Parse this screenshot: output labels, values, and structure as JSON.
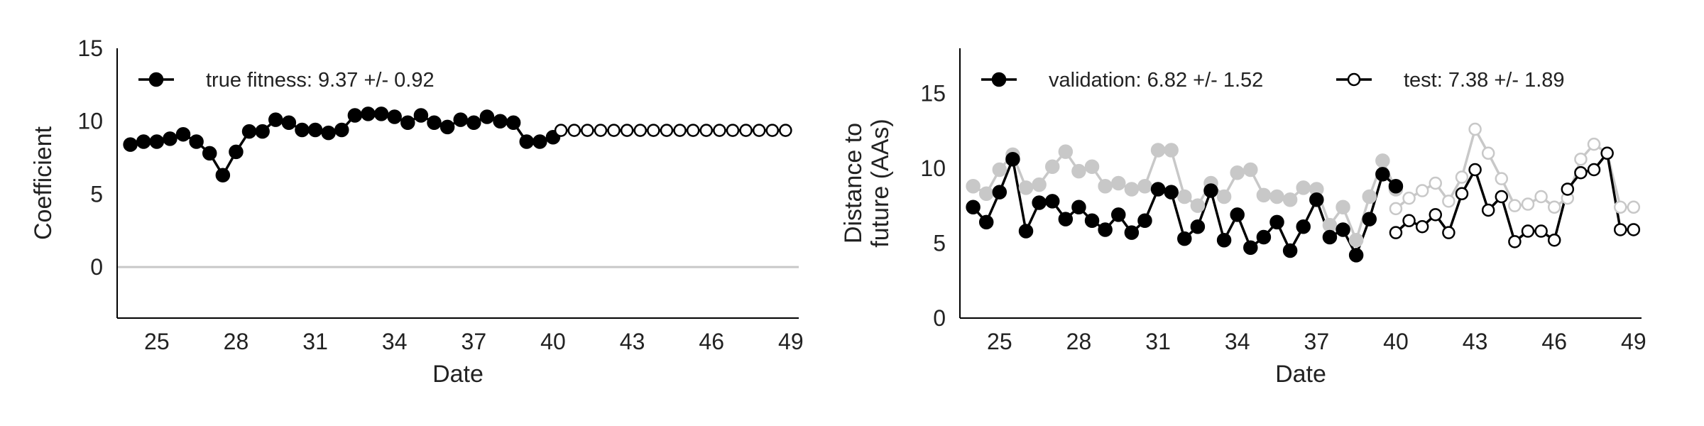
{
  "chart_data": [
    {
      "type": "line",
      "xlabel": "Date",
      "ylabel": "Coefficient",
      "xlim": [
        23.5,
        49.3
      ],
      "ylim": [
        -3.5,
        15
      ],
      "xticks": [
        25,
        28,
        31,
        34,
        37,
        40,
        43,
        46,
        49
      ],
      "xtick_labels": [
        "25",
        "28",
        "31",
        "34",
        "37",
        "40",
        "43",
        "46",
        "49"
      ],
      "yticks": [
        0,
        5,
        10,
        15
      ],
      "ytick_labels": [
        "0",
        "5",
        "10",
        "15"
      ],
      "grid": false,
      "legend_position": "top-left",
      "zero_line": {
        "y": 0,
        "color": "#c8c8c8"
      },
      "legend": [
        {
          "label": "true fitness: 9.37 +/- 0.92",
          "marker": "filled"
        }
      ],
      "series": [
        {
          "name": "true fitness: 9.37 +/- 0.92",
          "marker": "filled",
          "color": "#000000",
          "x": [
            24.0,
            24.5,
            25.0,
            25.5,
            26.0,
            26.5,
            27.0,
            27.5,
            28.0,
            28.5,
            29.0,
            29.5,
            30.0,
            30.5,
            31.0,
            31.5,
            32.0,
            32.5,
            33.0,
            33.5,
            34.0,
            34.5,
            35.0,
            35.5,
            36.0,
            36.5,
            37.0,
            37.5,
            38.0,
            38.5,
            39.0,
            39.5,
            40.0
          ],
          "y": [
            8.4,
            8.6,
            8.6,
            8.8,
            9.1,
            8.6,
            7.8,
            6.3,
            7.9,
            9.3,
            9.3,
            10.1,
            9.9,
            9.4,
            9.4,
            9.2,
            9.4,
            10.4,
            10.5,
            10.5,
            10.3,
            9.9,
            10.4,
            9.9,
            9.6,
            10.1,
            9.9,
            10.3,
            10.0,
            9.9,
            8.6,
            8.6,
            8.9
          ]
        },
        {
          "name": "",
          "marker": "open",
          "color": "#000000",
          "x": [
            40.3,
            40.8,
            41.3,
            41.8,
            42.3,
            42.8,
            43.3,
            43.8,
            44.3,
            44.8,
            45.3,
            45.8,
            46.3,
            46.8,
            47.3,
            47.8,
            48.3,
            48.8
          ],
          "y": [
            9.37,
            9.37,
            9.37,
            9.37,
            9.37,
            9.37,
            9.37,
            9.37,
            9.37,
            9.37,
            9.37,
            9.37,
            9.37,
            9.37,
            9.37,
            9.37,
            9.37,
            9.37
          ]
        }
      ]
    },
    {
      "type": "line",
      "xlabel": "Date",
      "ylabel": "Distance to\nfuture (AAs)",
      "ylabel_lines": [
        "Distance to",
        "future (AAs)"
      ],
      "xlim": [
        23.5,
        49.3
      ],
      "ylim": [
        0,
        18
      ],
      "xticks": [
        25,
        28,
        31,
        34,
        37,
        40,
        43,
        46,
        49
      ],
      "xtick_labels": [
        "25",
        "28",
        "31",
        "34",
        "37",
        "40",
        "43",
        "46",
        "49"
      ],
      "yticks": [
        0,
        5,
        10,
        15
      ],
      "ytick_labels": [
        "0",
        "5",
        "10",
        "15"
      ],
      "grid": false,
      "legend_position": "top-left",
      "legend": [
        {
          "label": "validation: 6.82 +/- 1.52",
          "marker": "filled"
        },
        {
          "label": "test: 7.38 +/- 1.89",
          "marker": "open"
        }
      ],
      "series": [
        {
          "name": "",
          "marker": "filled",
          "color": "#c8c8c8",
          "x": [
            24.0,
            24.5,
            25.0,
            25.5,
            26.0,
            26.5,
            27.0,
            27.5,
            28.0,
            28.5,
            29.0,
            29.5,
            30.0,
            30.5,
            31.0,
            31.5,
            32.0,
            32.5,
            33.0,
            33.5,
            34.0,
            34.5,
            35.0,
            35.5,
            36.0,
            36.5,
            37.0,
            37.5,
            38.0,
            38.5,
            39.0,
            39.5,
            40.0
          ],
          "y": [
            8.8,
            8.3,
            9.9,
            10.9,
            8.7,
            8.9,
            10.1,
            11.1,
            9.8,
            10.1,
            8.8,
            9.0,
            8.6,
            8.8,
            11.2,
            11.2,
            8.1,
            7.5,
            9.0,
            8.1,
            9.7,
            9.9,
            8.2,
            8.1,
            7.9,
            8.7,
            8.6,
            6.2,
            7.4,
            5.2,
            8.1,
            10.5,
            8.6
          ]
        },
        {
          "name": "validation: 6.82 +/- 1.52",
          "marker": "filled",
          "color": "#000000",
          "x": [
            24.0,
            24.5,
            25.0,
            25.5,
            26.0,
            26.5,
            27.0,
            27.5,
            28.0,
            28.5,
            29.0,
            29.5,
            30.0,
            30.5,
            31.0,
            31.5,
            32.0,
            32.5,
            33.0,
            33.5,
            34.0,
            34.5,
            35.0,
            35.5,
            36.0,
            36.5,
            37.0,
            37.5,
            38.0,
            38.5,
            39.0,
            39.5,
            40.0
          ],
          "y": [
            7.4,
            6.4,
            8.4,
            10.6,
            5.8,
            7.7,
            7.8,
            6.6,
            7.4,
            6.5,
            5.9,
            6.9,
            5.7,
            6.5,
            8.6,
            8.4,
            5.3,
            6.1,
            8.5,
            5.2,
            6.9,
            4.7,
            5.4,
            6.4,
            4.5,
            6.1,
            7.9,
            5.4,
            5.9,
            4.2,
            6.6,
            9.6,
            8.8
          ]
        },
        {
          "name": "",
          "marker": "open",
          "color": "#c8c8c8",
          "x": [
            40.0,
            40.5,
            41.0,
            41.5,
            42.0,
            42.5,
            43.0,
            43.5,
            44.0,
            44.5,
            45.0,
            45.5,
            46.0,
            46.5,
            47.0,
            47.5,
            48.0,
            48.5,
            49.0
          ],
          "y": [
            7.3,
            8.0,
            8.5,
            9.0,
            7.8,
            9.4,
            12.6,
            11.0,
            9.3,
            7.5,
            7.6,
            8.1,
            7.4,
            8.0,
            10.6,
            11.6,
            11.0,
            7.4,
            7.4
          ]
        },
        {
          "name": "test: 7.38 +/- 1.89",
          "marker": "open",
          "color": "#000000",
          "x": [
            40.0,
            40.5,
            41.0,
            41.5,
            42.0,
            42.5,
            43.0,
            43.5,
            44.0,
            44.5,
            45.0,
            45.5,
            46.0,
            46.5,
            47.0,
            47.5,
            48.0,
            48.5,
            49.0
          ],
          "y": [
            5.7,
            6.5,
            6.1,
            6.9,
            5.7,
            8.3,
            9.9,
            7.2,
            8.1,
            5.1,
            5.8,
            5.8,
            5.2,
            8.6,
            9.7,
            9.9,
            11.0,
            5.9,
            5.9
          ]
        }
      ]
    }
  ]
}
